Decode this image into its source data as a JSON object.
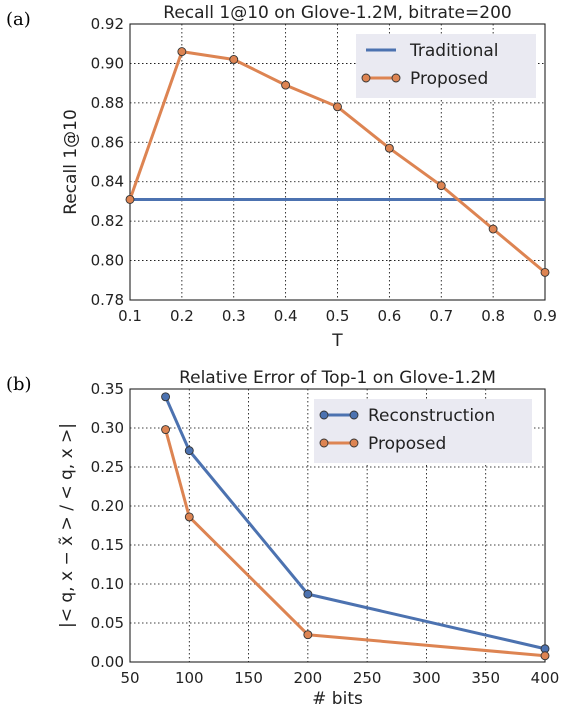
{
  "panels": [
    {
      "letter": "(a)"
    },
    {
      "letter": "(b)"
    }
  ],
  "colors": {
    "series1": "#4c72b0",
    "series2": "#dd8452",
    "legend_bg": "#eaeaf2",
    "grid": "#000000"
  },
  "chart_data": [
    {
      "type": "line",
      "title": "Recall 1@10 on Glove-1.2M, bitrate=200",
      "xlabel": "T",
      "ylabel": "Recall 1@10",
      "xlim": [
        0.1,
        0.9
      ],
      "ylim": [
        0.78,
        0.92
      ],
      "xticks": [
        "0.1",
        "0.2",
        "0.3",
        "0.4",
        "0.5",
        "0.6",
        "0.7",
        "0.8",
        "0.9"
      ],
      "yticks": [
        "0.78",
        "0.80",
        "0.82",
        "0.84",
        "0.86",
        "0.88",
        "0.90",
        "0.92"
      ],
      "grid": true,
      "legend_position": "top-right",
      "series": [
        {
          "name": "Traditional",
          "markers": false,
          "x": [
            0.1,
            0.9
          ],
          "y": [
            0.831,
            0.831
          ]
        },
        {
          "name": "Proposed",
          "markers": true,
          "x": [
            0.1,
            0.2,
            0.3,
            0.4,
            0.5,
            0.6,
            0.7,
            0.8,
            0.9
          ],
          "y": [
            0.831,
            0.906,
            0.902,
            0.889,
            0.878,
            0.857,
            0.838,
            0.816,
            0.794
          ]
        }
      ]
    },
    {
      "type": "line",
      "title": "Relative Error of Top-1 on Glove-1.2M",
      "xlabel": "# bits",
      "ylabel": "|< q, x − x̃ > / < q, x >|",
      "xlim": [
        50,
        400
      ],
      "ylim": [
        0,
        0.35
      ],
      "xticks": [
        "50",
        "100",
        "150",
        "200",
        "250",
        "300",
        "350",
        "400"
      ],
      "yticks": [
        "0.00",
        "0.05",
        "0.10",
        "0.15",
        "0.20",
        "0.25",
        "0.30",
        "0.35"
      ],
      "grid": true,
      "legend_position": "top-right",
      "series": [
        {
          "name": "Reconstruction",
          "markers": true,
          "x": [
            80,
            100,
            200,
            400
          ],
          "y": [
            0.34,
            0.271,
            0.087,
            0.017
          ]
        },
        {
          "name": "Proposed",
          "markers": true,
          "x": [
            80,
            100,
            200,
            400
          ],
          "y": [
            0.298,
            0.186,
            0.035,
            0.008
          ]
        }
      ]
    }
  ]
}
